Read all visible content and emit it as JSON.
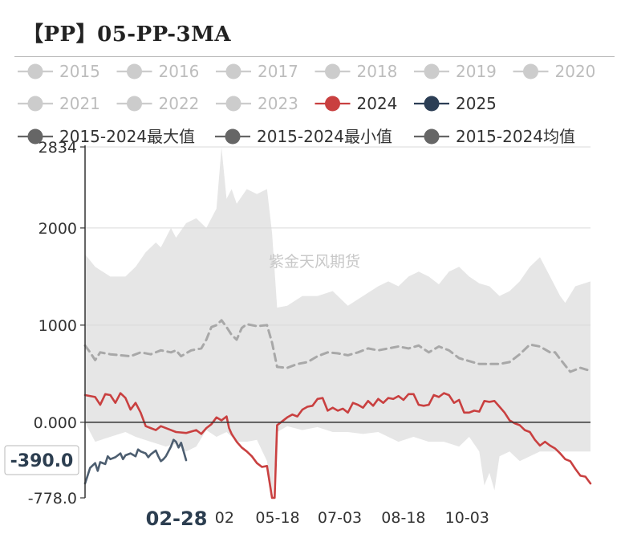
{
  "title": "【PP】05-PP-3MA",
  "watermark": "紫金天风期货",
  "chart_data": {
    "type": "line",
    "title": "【PP】05-PP-3MA",
    "ylim": [
      -778,
      2834
    ],
    "y_ticks": [
      {
        "value": 2834,
        "label": "2834"
      },
      {
        "value": 2000,
        "label": "2000"
      },
      {
        "value": 1000,
        "label": "1000"
      },
      {
        "value": 0,
        "label": "0.000"
      },
      {
        "value": -778,
        "label": "-778.0"
      }
    ],
    "x_ticks": [
      {
        "pos": 0.276,
        "label": "02"
      },
      {
        "pos": 0.381,
        "label": "05-18"
      },
      {
        "pos": 0.504,
        "label": "07-03"
      },
      {
        "pos": 0.63,
        "label": "08-18"
      },
      {
        "pos": 0.756,
        "label": "10-03"
      }
    ],
    "cursor": {
      "x_label": "02-28",
      "x_pos": 0.181,
      "y_label": "-390.0",
      "y_value": -390
    },
    "legend": [
      {
        "label": "2015",
        "color": "#cccccc",
        "active": false
      },
      {
        "label": "2016",
        "color": "#cccccc",
        "active": false
      },
      {
        "label": "2017",
        "color": "#cccccc",
        "active": false
      },
      {
        "label": "2018",
        "color": "#cccccc",
        "active": false
      },
      {
        "label": "2019",
        "color": "#cccccc",
        "active": false
      },
      {
        "label": "2020",
        "color": "#cccccc",
        "active": false
      },
      {
        "label": "2021",
        "color": "#cccccc",
        "active": false
      },
      {
        "label": "2022",
        "color": "#cccccc",
        "active": false
      },
      {
        "label": "2023",
        "color": "#cccccc",
        "active": false
      },
      {
        "label": "2024",
        "color": "#c94040",
        "active": true
      },
      {
        "label": "2025",
        "color": "#2c3e55",
        "active": true
      },
      {
        "label": "2015-2024最大值",
        "color": "#666666",
        "active": true
      },
      {
        "label": "2015-2024最小值",
        "color": "#666666",
        "active": true
      },
      {
        "label": "2015-2024均值",
        "color": "#666666",
        "active": true
      }
    ],
    "band": {
      "name": "2015-2024最大值 / 2015-2024最小值",
      "color": "#e6e6e6",
      "max": [
        [
          0.0,
          1730
        ],
        [
          0.02,
          1600
        ],
        [
          0.05,
          1500
        ],
        [
          0.08,
          1500
        ],
        [
          0.1,
          1600
        ],
        [
          0.12,
          1750
        ],
        [
          0.14,
          1850
        ],
        [
          0.15,
          1800
        ],
        [
          0.17,
          2000
        ],
        [
          0.18,
          1900
        ],
        [
          0.2,
          2050
        ],
        [
          0.22,
          2100
        ],
        [
          0.24,
          2000
        ],
        [
          0.26,
          2200
        ],
        [
          0.27,
          2830
        ],
        [
          0.28,
          2300
        ],
        [
          0.29,
          2400
        ],
        [
          0.3,
          2250
        ],
        [
          0.32,
          2400
        ],
        [
          0.34,
          2350
        ],
        [
          0.36,
          2400
        ],
        [
          0.37,
          1950
        ],
        [
          0.38,
          1180
        ],
        [
          0.4,
          1200
        ],
        [
          0.43,
          1300
        ],
        [
          0.46,
          1300
        ],
        [
          0.49,
          1350
        ],
        [
          0.52,
          1200
        ],
        [
          0.55,
          1300
        ],
        [
          0.58,
          1400
        ],
        [
          0.6,
          1450
        ],
        [
          0.62,
          1400
        ],
        [
          0.64,
          1500
        ],
        [
          0.66,
          1550
        ],
        [
          0.68,
          1500
        ],
        [
          0.7,
          1420
        ],
        [
          0.72,
          1550
        ],
        [
          0.74,
          1600
        ],
        [
          0.76,
          1500
        ],
        [
          0.78,
          1430
        ],
        [
          0.8,
          1400
        ],
        [
          0.82,
          1300
        ],
        [
          0.84,
          1350
        ],
        [
          0.86,
          1450
        ],
        [
          0.88,
          1600
        ],
        [
          0.9,
          1700
        ],
        [
          0.92,
          1500
        ],
        [
          0.94,
          1300
        ],
        [
          0.95,
          1230
        ],
        [
          0.97,
          1400
        ],
        [
          1.0,
          1450
        ]
      ],
      "min": [
        [
          0.0,
          0
        ],
        [
          0.02,
          -200
        ],
        [
          0.05,
          -150
        ],
        [
          0.08,
          -100
        ],
        [
          0.1,
          -150
        ],
        [
          0.13,
          -200
        ],
        [
          0.16,
          -250
        ],
        [
          0.18,
          -220
        ],
        [
          0.2,
          -300
        ],
        [
          0.22,
          -250
        ],
        [
          0.24,
          -80
        ],
        [
          0.26,
          -150
        ],
        [
          0.28,
          -100
        ],
        [
          0.3,
          -200
        ],
        [
          0.32,
          -200
        ],
        [
          0.34,
          -180
        ],
        [
          0.36,
          -400
        ],
        [
          0.37,
          -778
        ],
        [
          0.38,
          -100
        ],
        [
          0.4,
          -40
        ],
        [
          0.43,
          -80
        ],
        [
          0.46,
          -50
        ],
        [
          0.49,
          -100
        ],
        [
          0.52,
          -100
        ],
        [
          0.55,
          -120
        ],
        [
          0.58,
          -100
        ],
        [
          0.62,
          -200
        ],
        [
          0.65,
          -150
        ],
        [
          0.68,
          -200
        ],
        [
          0.71,
          -200
        ],
        [
          0.74,
          -250
        ],
        [
          0.76,
          -150
        ],
        [
          0.78,
          -300
        ],
        [
          0.79,
          -650
        ],
        [
          0.8,
          -520
        ],
        [
          0.81,
          -700
        ],
        [
          0.82,
          -350
        ],
        [
          0.84,
          -300
        ],
        [
          0.86,
          -400
        ],
        [
          0.88,
          -350
        ],
        [
          0.9,
          -300
        ],
        [
          0.92,
          -300
        ],
        [
          0.94,
          -300
        ],
        [
          0.96,
          -300
        ],
        [
          1.0,
          -300
        ]
      ]
    },
    "series": [
      {
        "name": "2015-2024均值",
        "color": "#a8a8a8",
        "dashed": true,
        "points": [
          [
            0.0,
            790
          ],
          [
            0.01,
            720
          ],
          [
            0.02,
            640
          ],
          [
            0.03,
            720
          ],
          [
            0.05,
            700
          ],
          [
            0.07,
            690
          ],
          [
            0.09,
            680
          ],
          [
            0.11,
            720
          ],
          [
            0.13,
            700
          ],
          [
            0.15,
            740
          ],
          [
            0.17,
            720
          ],
          [
            0.18,
            740
          ],
          [
            0.19,
            680
          ],
          [
            0.21,
            740
          ],
          [
            0.23,
            760
          ],
          [
            0.24,
            850
          ],
          [
            0.25,
            980
          ],
          [
            0.26,
            1000
          ],
          [
            0.27,
            1050
          ],
          [
            0.28,
            980
          ],
          [
            0.29,
            900
          ],
          [
            0.3,
            850
          ],
          [
            0.31,
            970
          ],
          [
            0.32,
            1010
          ],
          [
            0.34,
            990
          ],
          [
            0.36,
            1000
          ],
          [
            0.37,
            820
          ],
          [
            0.38,
            570
          ],
          [
            0.4,
            560
          ],
          [
            0.42,
            600
          ],
          [
            0.44,
            620
          ],
          [
            0.46,
            680
          ],
          [
            0.48,
            720
          ],
          [
            0.5,
            710
          ],
          [
            0.52,
            690
          ],
          [
            0.54,
            720
          ],
          [
            0.56,
            760
          ],
          [
            0.58,
            740
          ],
          [
            0.6,
            760
          ],
          [
            0.62,
            780
          ],
          [
            0.64,
            760
          ],
          [
            0.66,
            790
          ],
          [
            0.68,
            720
          ],
          [
            0.7,
            780
          ],
          [
            0.72,
            740
          ],
          [
            0.74,
            660
          ],
          [
            0.76,
            630
          ],
          [
            0.78,
            600
          ],
          [
            0.8,
            600
          ],
          [
            0.82,
            600
          ],
          [
            0.84,
            620
          ],
          [
            0.86,
            700
          ],
          [
            0.88,
            800
          ],
          [
            0.9,
            780
          ],
          [
            0.92,
            720
          ],
          [
            0.93,
            720
          ],
          [
            0.94,
            650
          ],
          [
            0.96,
            520
          ],
          [
            0.98,
            560
          ],
          [
            1.0,
            530
          ]
        ]
      },
      {
        "name": "2024",
        "color": "#c94040",
        "points": [
          [
            0.0,
            280
          ],
          [
            0.02,
            260
          ],
          [
            0.03,
            180
          ],
          [
            0.04,
            290
          ],
          [
            0.05,
            280
          ],
          [
            0.06,
            200
          ],
          [
            0.07,
            300
          ],
          [
            0.08,
            250
          ],
          [
            0.09,
            130
          ],
          [
            0.1,
            200
          ],
          [
            0.11,
            100
          ],
          [
            0.12,
            -40
          ],
          [
            0.13,
            -60
          ],
          [
            0.14,
            -80
          ],
          [
            0.15,
            -40
          ],
          [
            0.17,
            -80
          ],
          [
            0.18,
            -100
          ],
          [
            0.2,
            -110
          ],
          [
            0.22,
            -80
          ],
          [
            0.23,
            -120
          ],
          [
            0.24,
            -60
          ],
          [
            0.25,
            -20
          ],
          [
            0.26,
            50
          ],
          [
            0.27,
            20
          ],
          [
            0.28,
            60
          ],
          [
            0.285,
            -60
          ],
          [
            0.29,
            -120
          ],
          [
            0.3,
            -200
          ],
          [
            0.31,
            -260
          ],
          [
            0.32,
            -300
          ],
          [
            0.33,
            -350
          ],
          [
            0.34,
            -420
          ],
          [
            0.35,
            -460
          ],
          [
            0.36,
            -450
          ],
          [
            0.37,
            -778
          ],
          [
            0.375,
            -778
          ],
          [
            0.38,
            -30
          ],
          [
            0.39,
            10
          ],
          [
            0.4,
            50
          ],
          [
            0.41,
            80
          ],
          [
            0.42,
            60
          ],
          [
            0.43,
            130
          ],
          [
            0.44,
            160
          ],
          [
            0.45,
            170
          ],
          [
            0.46,
            240
          ],
          [
            0.47,
            250
          ],
          [
            0.48,
            120
          ],
          [
            0.49,
            150
          ],
          [
            0.5,
            120
          ],
          [
            0.51,
            140
          ],
          [
            0.52,
            100
          ],
          [
            0.53,
            200
          ],
          [
            0.54,
            180
          ],
          [
            0.55,
            150
          ],
          [
            0.56,
            220
          ],
          [
            0.57,
            170
          ],
          [
            0.58,
            240
          ],
          [
            0.59,
            200
          ],
          [
            0.6,
            250
          ],
          [
            0.61,
            240
          ],
          [
            0.62,
            270
          ],
          [
            0.63,
            230
          ],
          [
            0.64,
            290
          ],
          [
            0.65,
            290
          ],
          [
            0.66,
            180
          ],
          [
            0.67,
            170
          ],
          [
            0.68,
            180
          ],
          [
            0.69,
            280
          ],
          [
            0.7,
            260
          ],
          [
            0.71,
            300
          ],
          [
            0.72,
            280
          ],
          [
            0.73,
            200
          ],
          [
            0.74,
            230
          ],
          [
            0.75,
            100
          ],
          [
            0.76,
            100
          ],
          [
            0.77,
            120
          ],
          [
            0.78,
            110
          ],
          [
            0.79,
            220
          ],
          [
            0.8,
            210
          ],
          [
            0.81,
            220
          ],
          [
            0.82,
            160
          ],
          [
            0.83,
            100
          ],
          [
            0.84,
            20
          ],
          [
            0.85,
            -10
          ],
          [
            0.86,
            -30
          ],
          [
            0.87,
            -80
          ],
          [
            0.88,
            -100
          ],
          [
            0.89,
            -180
          ],
          [
            0.9,
            -240
          ],
          [
            0.91,
            -200
          ],
          [
            0.92,
            -240
          ],
          [
            0.93,
            -270
          ],
          [
            0.94,
            -320
          ],
          [
            0.95,
            -380
          ],
          [
            0.96,
            -400
          ],
          [
            0.97,
            -480
          ],
          [
            0.98,
            -550
          ],
          [
            0.99,
            -560
          ],
          [
            1.0,
            -630
          ]
        ]
      },
      {
        "name": "2025",
        "color": "#4d5e70",
        "points": [
          [
            0.0,
            -630
          ],
          [
            0.01,
            -470
          ],
          [
            0.02,
            -420
          ],
          [
            0.025,
            -500
          ],
          [
            0.03,
            -410
          ],
          [
            0.04,
            -430
          ],
          [
            0.045,
            -350
          ],
          [
            0.05,
            -380
          ],
          [
            0.06,
            -360
          ],
          [
            0.07,
            -320
          ],
          [
            0.075,
            -380
          ],
          [
            0.08,
            -340
          ],
          [
            0.09,
            -320
          ],
          [
            0.1,
            -350
          ],
          [
            0.105,
            -280
          ],
          [
            0.11,
            -300
          ],
          [
            0.12,
            -320
          ],
          [
            0.125,
            -360
          ],
          [
            0.13,
            -330
          ],
          [
            0.14,
            -290
          ],
          [
            0.145,
            -350
          ],
          [
            0.15,
            -400
          ],
          [
            0.155,
            -380
          ],
          [
            0.16,
            -350
          ],
          [
            0.17,
            -250
          ],
          [
            0.175,
            -180
          ],
          [
            0.18,
            -200
          ],
          [
            0.185,
            -260
          ],
          [
            0.19,
            -210
          ],
          [
            0.195,
            -300
          ],
          [
            0.2,
            -390
          ]
        ]
      }
    ]
  }
}
